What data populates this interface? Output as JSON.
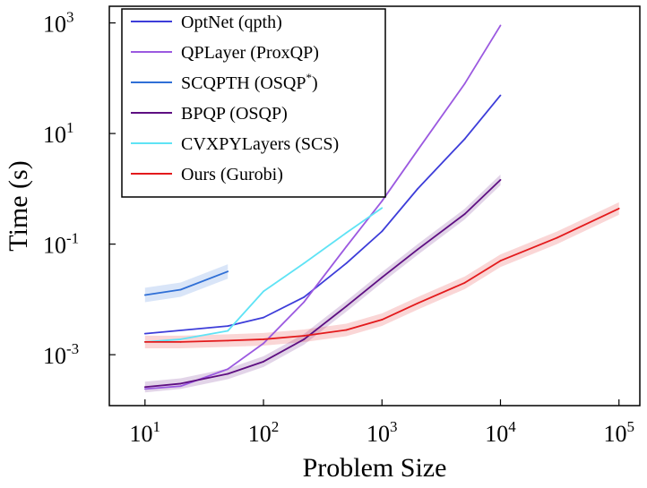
{
  "chart_data": {
    "type": "line",
    "xlabel": "Problem Size",
    "ylabel": "Time (s)",
    "xscale": "log",
    "yscale": "log",
    "xlim": [
      5,
      150000
    ],
    "ylim": [
      0.00012,
      2000
    ],
    "grid": false,
    "legend_position": "top-left",
    "x_ticks": [
      {
        "base": "10",
        "exp": "1",
        "value": 10
      },
      {
        "base": "10",
        "exp": "2",
        "value": 100
      },
      {
        "base": "10",
        "exp": "3",
        "value": 1000
      },
      {
        "base": "10",
        "exp": "4",
        "value": 10000
      },
      {
        "base": "10",
        "exp": "5",
        "value": 100000
      }
    ],
    "y_ticks": [
      {
        "base": "10",
        "exp": "-3",
        "value": 0.001
      },
      {
        "base": "10",
        "exp": "-1",
        "value": 0.1
      },
      {
        "base": "10",
        "exp": "1",
        "value": 10
      },
      {
        "base": "10",
        "exp": "3",
        "value": 1000
      }
    ],
    "series": [
      {
        "name": "OptNet (qpth)",
        "color": "#3d3dd9",
        "points": [
          [
            10,
            0.0024
          ],
          [
            50,
            0.0033
          ],
          [
            100,
            0.0047
          ],
          [
            220,
            0.011
          ],
          [
            500,
            0.045
          ],
          [
            1000,
            0.17
          ],
          [
            2000,
            1.0
          ],
          [
            5000,
            8.0
          ],
          [
            10000,
            49
          ]
        ]
      },
      {
        "name": "QPLayer (ProxQP)",
        "color": "#9b59e0",
        "points": [
          [
            10,
            0.00024
          ],
          [
            20,
            0.00027
          ],
          [
            50,
            0.00055
          ],
          [
            100,
            0.0016
          ],
          [
            220,
            0.009
          ],
          [
            500,
            0.09
          ],
          [
            1000,
            0.6
          ],
          [
            2000,
            5.0
          ],
          [
            5000,
            80
          ],
          [
            10000,
            900
          ]
        ]
      },
      {
        "name": "SCQPTH (OSQP*)",
        "label_base": "SCQPTH (OSQP",
        "label_sup": "*",
        "label_end": ")",
        "color": "#2f6fd6",
        "points": [
          [
            10,
            0.012
          ],
          [
            20,
            0.015
          ],
          [
            50,
            0.032
          ]
        ]
      },
      {
        "name": "BPQP (OSQP)",
        "color": "#5e0f82",
        "points": [
          [
            10,
            0.00026
          ],
          [
            20,
            0.0003
          ],
          [
            50,
            0.00045
          ],
          [
            100,
            0.00075
          ],
          [
            220,
            0.0019
          ],
          [
            500,
            0.0075
          ],
          [
            1000,
            0.025
          ],
          [
            2000,
            0.08
          ],
          [
            5000,
            0.35
          ],
          [
            10000,
            1.45
          ]
        ]
      },
      {
        "name": "CVXPYLayers (SCS)",
        "color": "#5fe3f5",
        "points": [
          [
            10,
            0.0017
          ],
          [
            20,
            0.0019
          ],
          [
            50,
            0.0027
          ],
          [
            100,
            0.014
          ],
          [
            220,
            0.045
          ],
          [
            500,
            0.16
          ],
          [
            1000,
            0.45
          ]
        ]
      },
      {
        "name": "Ours (Gurobi)",
        "color": "#e31a1c",
        "points": [
          [
            10,
            0.0017
          ],
          [
            20,
            0.0017
          ],
          [
            50,
            0.0018
          ],
          [
            100,
            0.0019
          ],
          [
            220,
            0.0022
          ],
          [
            500,
            0.0028
          ],
          [
            1000,
            0.0043
          ],
          [
            2000,
            0.0085
          ],
          [
            5000,
            0.02
          ],
          [
            10000,
            0.05
          ],
          [
            30000,
            0.13
          ],
          [
            100000,
            0.44
          ]
        ]
      }
    ]
  }
}
